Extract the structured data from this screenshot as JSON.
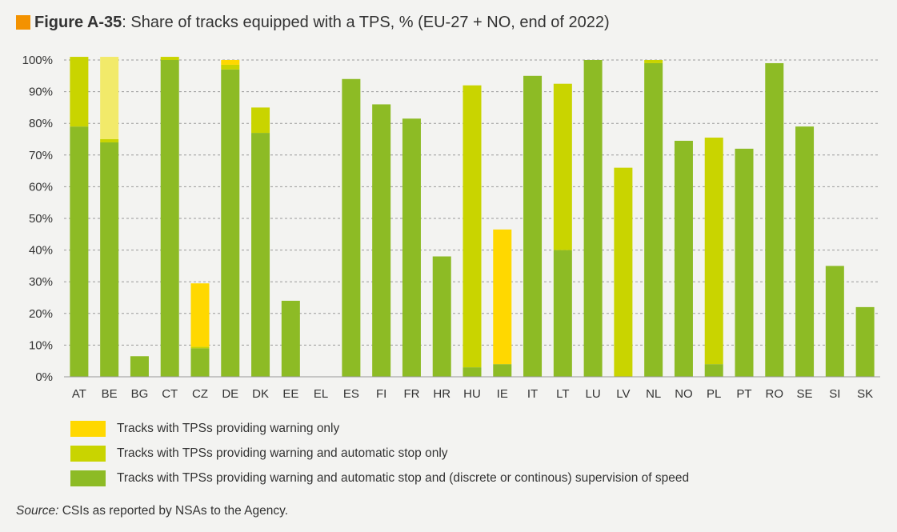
{
  "header": {
    "accent_color": "#f39200",
    "figure_label": "Figure A-35",
    "title_rest": ": Share of tracks equipped with a TPS, % (EU-27 + NO, end of 2022)"
  },
  "chart_data": {
    "type": "bar",
    "stacked": true,
    "title": "Share of tracks equipped with a TPS, % (EU-27 + NO, end of 2022)",
    "xlabel": "",
    "ylabel": "",
    "ylim": [
      0,
      100
    ],
    "yticks": [
      "0%",
      "10%",
      "20%",
      "30%",
      "40%",
      "50%",
      "60%",
      "70%",
      "80%",
      "90%",
      "100%"
    ],
    "grid": true,
    "legend_position": "bottom",
    "categories": [
      "AT",
      "BE",
      "BG",
      "CT",
      "CZ",
      "DE",
      "DK",
      "EE",
      "EL",
      "ES",
      "FI",
      "FR",
      "HR",
      "HU",
      "IE",
      "IT",
      "LT",
      "LU",
      "LV",
      "NL",
      "NO",
      "PL",
      "PT",
      "RO",
      "SE",
      "SI",
      "SK"
    ],
    "series": [
      {
        "name": "Tracks with TPSs providing warning and automatic stop and (discrete or continous) supervision of speed",
        "color": "#8dbb25",
        "values": [
          79,
          74,
          6.5,
          100,
          9,
          97,
          77,
          24,
          0,
          94,
          86,
          81.5,
          38,
          3,
          4,
          95,
          40,
          100,
          0,
          99,
          74.5,
          4,
          72,
          99,
          79,
          35,
          22
        ]
      },
      {
        "name": "Tracks with TPSs providing warning and automatic stop only",
        "color": "#c9d400",
        "values": [
          22,
          1,
          0,
          1,
          0.5,
          1.5,
          8,
          0,
          0,
          0,
          0,
          0,
          0,
          89,
          0,
          0,
          52.5,
          0,
          66,
          1,
          0,
          71.5,
          0,
          0,
          0,
          0,
          0
        ]
      },
      {
        "name": "Tracks with TPSs providing warning only",
        "color": "#ffd800",
        "values": [
          0,
          0,
          0,
          0,
          20,
          1.5,
          0,
          0,
          0,
          0,
          0,
          0,
          0,
          0,
          42.5,
          0,
          0,
          0,
          0,
          0,
          0,
          0,
          0,
          0,
          0,
          0,
          0
        ]
      },
      {
        "name": "",
        "color": "#f2ea6a",
        "values": [
          0,
          26,
          0,
          0,
          0,
          0,
          0,
          0,
          0,
          0,
          0,
          0,
          0,
          0,
          0,
          0,
          0,
          0,
          0,
          0,
          0,
          0,
          0,
          0,
          0,
          0,
          0
        ]
      }
    ]
  },
  "legend": {
    "items": [
      {
        "label": "Tracks with TPSs providing warning only",
        "color": "#ffd800"
      },
      {
        "label": "Tracks with TPSs providing warning and automatic stop only",
        "color": "#c9d400"
      },
      {
        "label": "Tracks with TPSs providing warning and automatic stop and (discrete or continous) supervision of speed",
        "color": "#8dbb25"
      }
    ]
  },
  "source": {
    "label": "Source:",
    "text": " CSIs as reported by NSAs to the Agency."
  }
}
